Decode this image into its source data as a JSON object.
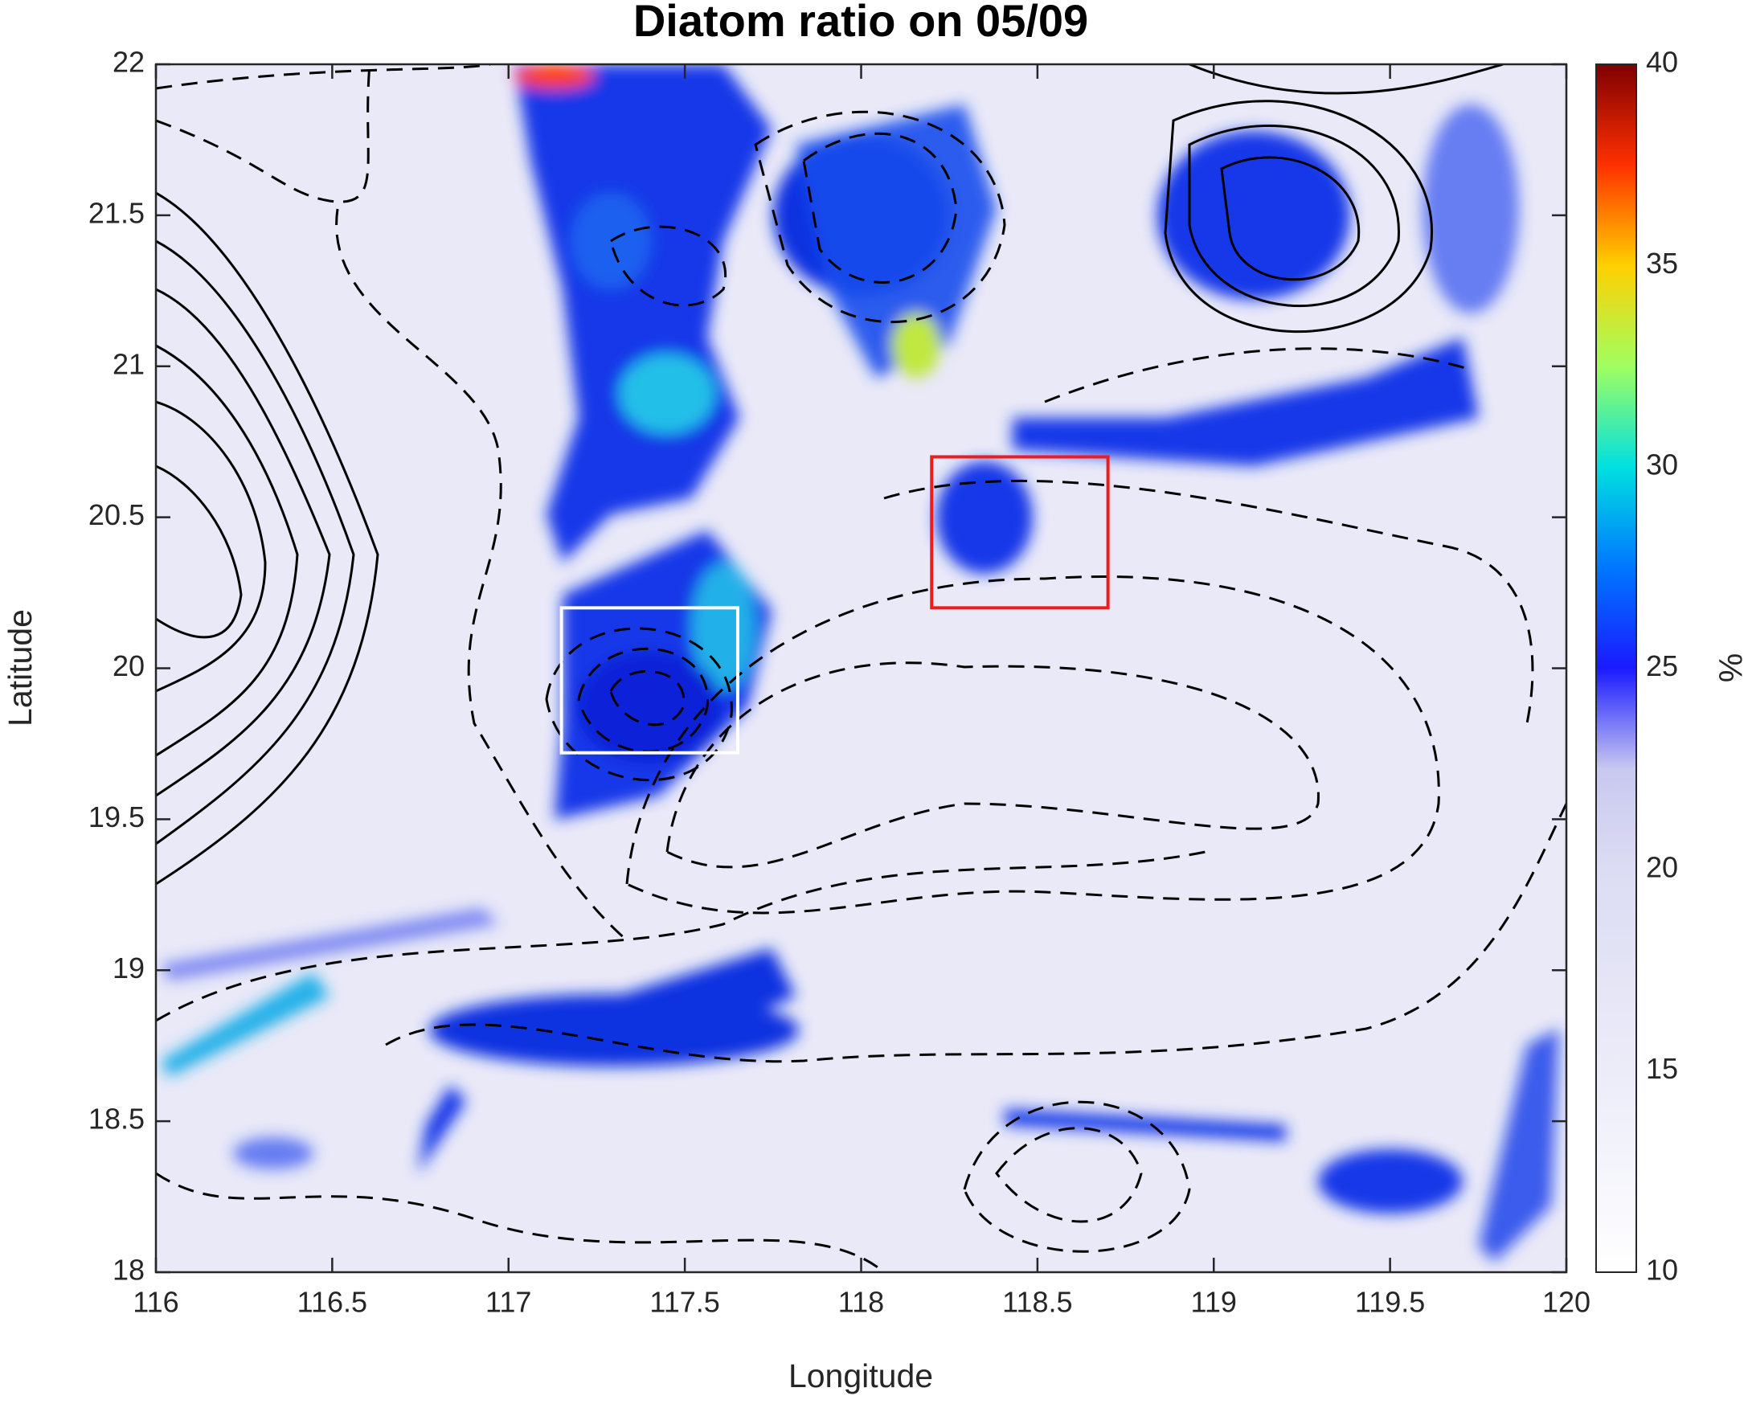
{
  "chart_data": {
    "type": "map",
    "title": "Diatom ratio on 05/09",
    "x_label": "Longitude",
    "y_label": "Latitude",
    "xlim": [
      116,
      120
    ],
    "xticks": [
      116,
      116.5,
      117,
      117.5,
      118,
      118.5,
      119,
      119.5,
      120
    ],
    "ylim": [
      18,
      22
    ],
    "yticks": [
      18,
      18.5,
      19,
      19.5,
      20,
      20.5,
      21,
      21.5,
      22
    ],
    "colorbar": {
      "label": "%",
      "clim": [
        10,
        40
      ],
      "ticks": [
        10,
        15,
        20,
        25,
        30,
        35,
        40
      ],
      "colormap": [
        "#ffffff",
        "#f5f5fc",
        "#ececf9",
        "#e4e4f6",
        "#dcdcf3",
        "#c8c8f0",
        "#1a1aff",
        "#0077ff",
        "#00e0e0",
        "#a0ff60",
        "#ffd000",
        "#ff3000",
        "#800000"
      ]
    },
    "boxes": [
      {
        "color": "#ffffff",
        "lon": [
          117.15,
          117.65
        ],
        "lat": [
          19.72,
          20.2
        ]
      },
      {
        "color": "#ee1c1c",
        "lon": [
          118.2,
          118.7
        ],
        "lat": [
          20.2,
          20.7
        ]
      }
    ]
  }
}
